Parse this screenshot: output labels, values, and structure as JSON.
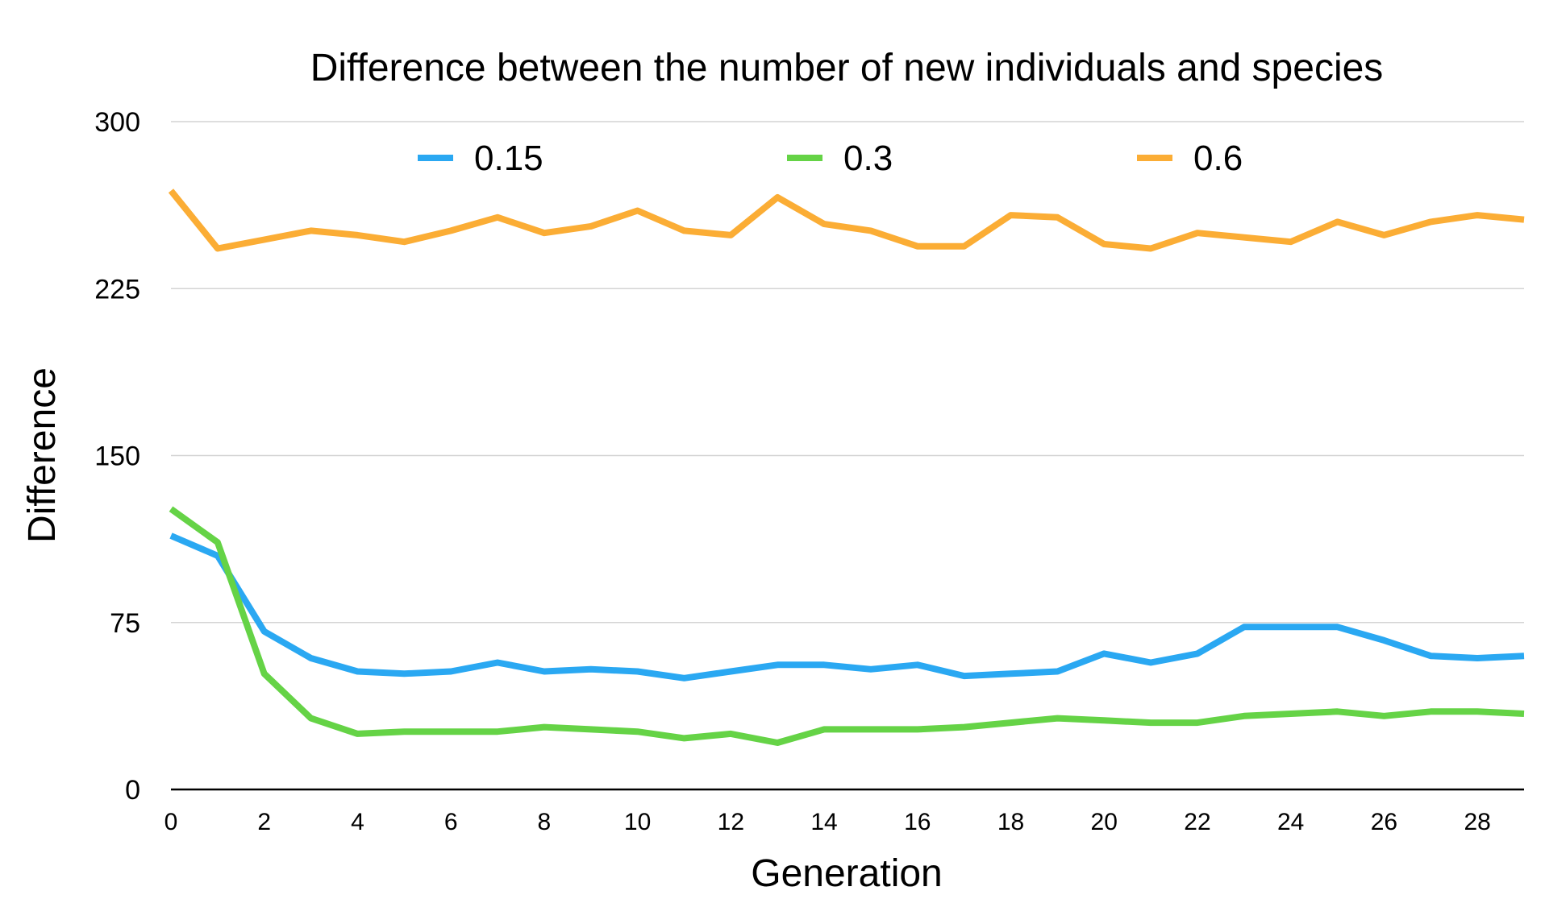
{
  "chart_data": {
    "type": "line",
    "title": "Difference between the number of new individuals and species",
    "xlabel": "Generation",
    "ylabel": "Difference",
    "x": [
      0,
      1,
      2,
      3,
      4,
      5,
      6,
      7,
      8,
      9,
      10,
      11,
      12,
      13,
      14,
      15,
      16,
      17,
      18,
      19,
      20,
      21,
      22,
      23,
      24,
      25,
      26,
      27,
      28,
      29
    ],
    "x_tick_labels": [
      "0",
      "2",
      "4",
      "6",
      "8",
      "10",
      "12",
      "14",
      "16",
      "18",
      "20",
      "22",
      "24",
      "26",
      "28"
    ],
    "x_tick_values": [
      0,
      2,
      4,
      6,
      8,
      10,
      12,
      14,
      16,
      18,
      20,
      22,
      24,
      26,
      28
    ],
    "xlim": [
      0,
      29
    ],
    "y_tick_labels": [
      "0",
      "75",
      "150",
      "225",
      "300"
    ],
    "y_tick_values": [
      0,
      75,
      150,
      225,
      300
    ],
    "ylim": [
      0,
      300
    ],
    "grid": true,
    "legend_position": "top",
    "series": [
      {
        "name": "0.15",
        "color": "#2aa8f2",
        "values": [
          114,
          105,
          71,
          59,
          53,
          52,
          53,
          57,
          53,
          54,
          53,
          50,
          53,
          56,
          56,
          54,
          56,
          51,
          52,
          53,
          61,
          57,
          61,
          73,
          73,
          73,
          67,
          60,
          59,
          60
        ]
      },
      {
        "name": "0.3",
        "color": "#65d346",
        "values": [
          126,
          111,
          52,
          32,
          25,
          26,
          26,
          26,
          28,
          27,
          26,
          23,
          25,
          21,
          27,
          27,
          27,
          28,
          30,
          32,
          31,
          30,
          30,
          33,
          34,
          35,
          33,
          35,
          35,
          34
        ]
      },
      {
        "name": "0.6",
        "color": "#fbad35",
        "values": [
          269,
          243,
          247,
          251,
          249,
          246,
          251,
          257,
          250,
          253,
          260,
          251,
          249,
          266,
          254,
          251,
          244,
          244,
          258,
          257,
          245,
          243,
          250,
          248,
          246,
          255,
          249,
          255,
          258,
          256
        ]
      }
    ]
  }
}
